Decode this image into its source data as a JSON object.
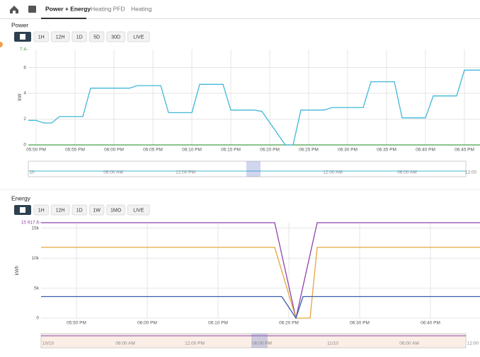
{
  "nav": {
    "tabs": [
      "Power + Energy",
      "Heating PFD",
      "Heating"
    ]
  },
  "chart_data": [
    {
      "type": "line",
      "title": "Power",
      "range_buttons": [
        "1H",
        "12H",
        "1D",
        "5D",
        "30D",
        "LIVE"
      ],
      "y_label": "kW",
      "xlim": [
        "05:49 PM",
        "06:47 PM"
      ],
      "ylim": [
        0,
        7.4
      ],
      "yticks": [
        0,
        2,
        4,
        6,
        7.4
      ],
      "top_tick_color": "#43a047",
      "grid": true,
      "xticks": [
        "05:50 PM",
        "05:55 PM",
        "06:00 PM",
        "06:05 PM",
        "06:10 PM",
        "06:15 PM",
        "06:20 PM",
        "06:25 PM",
        "06:30 PM",
        "06:35 PM",
        "06:40 PM",
        "06:45 PM"
      ],
      "navigator_labels": [
        "10",
        "06:00 AM",
        "12:00 PM",
        "12:00 AM",
        "06:00 AM",
        "12:00"
      ],
      "series": [
        {
          "color": "#43a047",
          "x": [
            "05:49 PM",
            "06:47 PM"
          ],
          "values": [
            0,
            0
          ]
        },
        {
          "color": "#3fb8d8",
          "x": [
            "05:49 PM",
            "05:50 PM",
            "05:51 PM",
            "05:52 PM",
            "05:53 PM",
            "05:56 PM",
            "05:57 PM",
            "06:02 PM",
            "06:03 PM",
            "06:06 PM",
            "06:07 PM",
            "06:10 PM",
            "06:11 PM",
            "06:14 PM",
            "06:15 PM",
            "06:18 PM",
            "06:19 PM",
            "06:22 PM",
            "06:23 PM",
            "06:24 PM",
            "06:27 PM",
            "06:28 PM",
            "06:32 PM",
            "06:33 PM",
            "06:36 PM",
            "06:37 PM",
            "06:40 PM",
            "06:41 PM",
            "06:44 PM",
            "06:45 PM",
            "06:47 PM"
          ],
          "values": [
            1.9,
            1.9,
            1.7,
            1.7,
            2.2,
            2.2,
            4.4,
            4.4,
            4.6,
            4.6,
            2.5,
            2.5,
            4.7,
            4.7,
            2.7,
            2.7,
            2.6,
            0,
            0,
            2.7,
            2.7,
            2.9,
            2.9,
            4.9,
            4.9,
            2.1,
            2.1,
            3.8,
            3.8,
            5.8,
            5.8
          ]
        }
      ]
    },
    {
      "type": "line",
      "title": "Energy",
      "range_buttons": [
        "1H",
        "12H",
        "1D",
        "1W",
        "1MO",
        "LIVE"
      ],
      "y_label": "kWh",
      "xlim": [
        "05:45 PM",
        "06:47 PM"
      ],
      "ylim": [
        0,
        15917.6
      ],
      "yticks": [
        0,
        {
          "value": 5000,
          "label": "5k"
        },
        {
          "value": 10000,
          "label": "10k"
        },
        {
          "value": 15000,
          "label": "15k"
        },
        {
          "value": 15917.6,
          "label": "15 917.6"
        }
      ],
      "top_tick_color": "#8e44ad",
      "grid": true,
      "xticks": [
        "05:50 PM",
        "06:00 PM",
        "06:10 PM",
        "06:20 PM",
        "06:30 PM",
        "06:40 PM"
      ],
      "navigator_labels": [
        "10/10",
        "06:00 AM",
        "12:00 PM",
        "06:00 PM",
        "11/10",
        "06:00 AM",
        "12:00"
      ],
      "series": [
        {
          "color": "#8e44ad",
          "x": [
            "05:45 PM",
            "06:18 PM",
            "06:21 PM",
            "06:24 PM",
            "06:47 PM"
          ],
          "values": [
            15917.6,
            15917.6,
            0,
            15917.6,
            15917.6
          ]
        },
        {
          "color": "#e8a33c",
          "x": [
            "05:45 PM",
            "06:18 PM",
            "06:21 PM",
            "06:23 PM",
            "06:24 PM",
            "06:47 PM"
          ],
          "values": [
            11800,
            11800,
            0,
            0,
            11800,
            11800
          ]
        },
        {
          "color": "#3a5ea8",
          "x": [
            "05:45 PM",
            "06:19 PM",
            "06:21 PM",
            "06:22 PM",
            "06:47 PM"
          ],
          "values": [
            3600,
            3600,
            0,
            3600,
            3600
          ]
        }
      ]
    }
  ]
}
